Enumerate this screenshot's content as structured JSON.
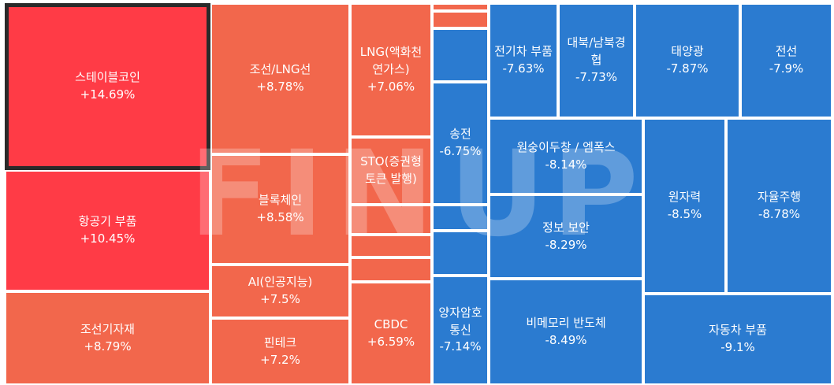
{
  "chart_data": {
    "type": "treemap",
    "watermark": "FINUP",
    "colors": {
      "up_strong": "#ff3b46",
      "up": "#f2674c",
      "down": "#2b7bd0"
    },
    "tiles": [
      {
        "name": "스테이블코인",
        "change": "+14.69%",
        "value": 14.69,
        "selected": true
      },
      {
        "name": "항공기 부품",
        "change": "+10.45%",
        "value": 10.45
      },
      {
        "name": "조선기자재",
        "change": "+8.79%",
        "value": 8.79
      },
      {
        "name": "조선/LNG선",
        "change": "+8.78%",
        "value": 8.78
      },
      {
        "name": "블록체인",
        "change": "+8.58%",
        "value": 8.58
      },
      {
        "name": "AI(인공지능)",
        "change": "+7.5%",
        "value": 7.5
      },
      {
        "name": "핀테크",
        "change": "+7.2%",
        "value": 7.2
      },
      {
        "name": "LNG(액화천연가스)",
        "change": "+7.06%",
        "value": 7.06
      },
      {
        "name": "STO(증권형토큰 발행)",
        "change": "",
        "value": null
      },
      {
        "name": "CBDC",
        "change": "+6.59%",
        "value": 6.59
      },
      {
        "name": "",
        "change": "",
        "value": null
      },
      {
        "name": "",
        "change": "",
        "value": null
      },
      {
        "name": "",
        "change": "",
        "value": null
      },
      {
        "name": "",
        "change": "",
        "value": null
      },
      {
        "name": "",
        "change": "",
        "value": null
      },
      {
        "name": "",
        "change": "",
        "value": null
      },
      {
        "name": "",
        "change": "",
        "value": null
      },
      {
        "name": "",
        "change": "",
        "value": null
      },
      {
        "name": "송전",
        "change": "-6.75%",
        "value": -6.75
      },
      {
        "name": "양자암호통신",
        "change": "-7.14%",
        "value": -7.14
      },
      {
        "name": "전기차 부품",
        "change": "-7.63%",
        "value": -7.63
      },
      {
        "name": "대북/남북경협",
        "change": "-7.73%",
        "value": -7.73
      },
      {
        "name": "태양광",
        "change": "-7.87%",
        "value": -7.87
      },
      {
        "name": "전선",
        "change": "-7.9%",
        "value": -7.9
      },
      {
        "name": "원숭이두창 / 엠폭스",
        "change": "-8.14%",
        "value": -8.14
      },
      {
        "name": "정보 보안",
        "change": "-8.29%",
        "value": -8.29
      },
      {
        "name": "비메모리 반도체",
        "change": "-8.49%",
        "value": -8.49
      },
      {
        "name": "원자력",
        "change": "-8.5%",
        "value": -8.5
      },
      {
        "name": "자율주행",
        "change": "-8.78%",
        "value": -8.78
      },
      {
        "name": "자동차 부품",
        "change": "-9.1%",
        "value": -9.1
      }
    ]
  }
}
